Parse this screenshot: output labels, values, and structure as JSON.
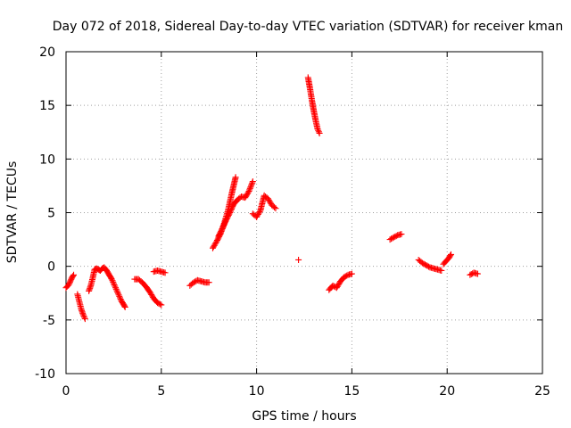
{
  "chart_data": {
    "type": "scatter",
    "title": "Day 072 of 2018, Sidereal Day-to-day VTEC variation (SDTVAR) for receiver kman",
    "xlabel": "GPS time / hours",
    "ylabel": "SDTVAR / TECUs",
    "xlim": [
      0,
      25
    ],
    "ylim": [
      -10,
      20
    ],
    "xticks": [
      0,
      5,
      10,
      15,
      20,
      25
    ],
    "yticks": [
      -10,
      -5,
      0,
      5,
      10,
      15,
      20
    ],
    "grid": true,
    "marker": "plus",
    "color": "#ff0000",
    "segments": [
      {
        "x": [
          0.0,
          0.15,
          0.3,
          0.4
        ],
        "y": [
          -2.0,
          -1.7,
          -1.1,
          -0.8
        ]
      },
      {
        "x": [
          0.6,
          0.7,
          0.8,
          0.9,
          1.0
        ],
        "y": [
          -2.6,
          -3.3,
          -4.0,
          -4.5,
          -4.9
        ]
      },
      {
        "x": [
          1.2,
          1.3,
          1.4,
          1.5,
          1.6,
          1.7,
          1.8,
          1.9,
          2.0,
          2.1,
          2.2,
          2.3,
          2.4,
          2.5,
          2.6,
          2.7,
          2.8,
          2.9,
          3.0,
          3.1
        ],
        "y": [
          -2.3,
          -1.8,
          -1.1,
          -0.3,
          -0.2,
          -0.3,
          -0.4,
          -0.2,
          -0.1,
          -0.3,
          -0.6,
          -0.9,
          -1.2,
          -1.6,
          -2.0,
          -2.4,
          -2.8,
          -3.2,
          -3.5,
          -3.8
        ]
      },
      {
        "x": [
          3.6,
          3.8,
          4.0,
          4.2,
          4.4,
          4.6,
          4.8,
          5.0
        ],
        "y": [
          -1.2,
          -1.2,
          -1.5,
          -1.9,
          -2.4,
          -3.0,
          -3.4,
          -3.6
        ]
      },
      {
        "x": [
          4.6,
          4.8,
          5.0,
          5.2
        ],
        "y": [
          -0.5,
          -0.4,
          -0.5,
          -0.6
        ]
      },
      {
        "x": [
          6.5,
          6.7,
          6.9,
          7.1,
          7.3,
          7.5
        ],
        "y": [
          -1.8,
          -1.5,
          -1.3,
          -1.4,
          -1.5,
          -1.5
        ]
      },
      {
        "x": [
          7.7,
          7.9,
          8.1,
          8.3,
          8.5,
          8.7,
          8.9
        ],
        "y": [
          1.7,
          2.3,
          3.0,
          4.0,
          5.2,
          6.8,
          8.3
        ]
      },
      {
        "x": [
          8.0,
          8.2,
          8.4,
          8.6,
          8.8,
          9.0,
          9.2,
          9.4,
          9.6,
          9.8
        ],
        "y": [
          2.8,
          3.5,
          4.3,
          5.0,
          5.8,
          6.2,
          6.5,
          6.4,
          7.0,
          7.9
        ]
      },
      {
        "x": [
          9.8,
          10.0,
          10.2,
          10.4,
          10.6,
          10.8,
          11.0
        ],
        "y": [
          4.9,
          4.6,
          5.2,
          6.6,
          6.3,
          5.7,
          5.4
        ]
      },
      {
        "x": [
          12.2
        ],
        "y": [
          0.6
        ]
      },
      {
        "x": [
          12.7,
          12.8,
          12.9,
          13.0,
          13.1,
          13.2,
          13.3
        ],
        "y": [
          17.6,
          16.6,
          15.5,
          14.5,
          13.6,
          12.8,
          12.4
        ]
      },
      {
        "x": [
          13.8,
          14.0,
          14.2,
          14.4,
          14.6,
          14.8,
          15.0
        ],
        "y": [
          -2.2,
          -1.8,
          -2.0,
          -1.4,
          -1.0,
          -0.8,
          -0.7
        ]
      },
      {
        "x": [
          17.0,
          17.2,
          17.4,
          17.6
        ],
        "y": [
          2.5,
          2.7,
          2.9,
          3.0
        ]
      },
      {
        "x": [
          18.5,
          18.7,
          18.9,
          19.1,
          19.3,
          19.5,
          19.7
        ],
        "y": [
          0.6,
          0.3,
          0.1,
          -0.1,
          -0.2,
          -0.3,
          -0.4
        ]
      },
      {
        "x": [
          19.8,
          19.95,
          20.1,
          20.2
        ],
        "y": [
          0.2,
          0.5,
          0.8,
          1.1
        ]
      },
      {
        "x": [
          21.2,
          21.4,
          21.6
        ],
        "y": [
          -0.8,
          -0.6,
          -0.7
        ]
      }
    ]
  }
}
